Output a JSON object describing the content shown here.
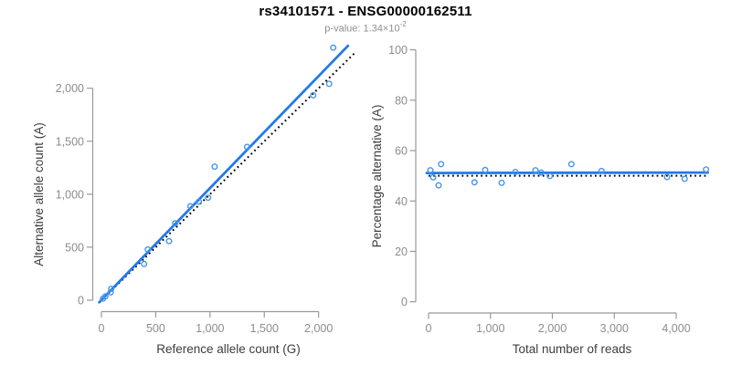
{
  "header": {
    "title": "rs34101571 - ENSG00000162511",
    "subtitle_prefix": "p-value: 1.34×10",
    "subtitle_exponent": "-2"
  },
  "colors": {
    "point": "#4697e8",
    "fit_line": "#2279e8",
    "reference_line": "#000000",
    "axis": "#999999",
    "tick_label": "#8c8c8c",
    "axis_title": "#3d3d3d",
    "title": "#000000",
    "subtitle": "#8f8f8f",
    "background": "#ffffff"
  },
  "chart_data": [
    {
      "name": "allele-counts-scatter",
      "type": "scatter",
      "xlabel": "Reference allele count (G)",
      "ylabel": "Alternative allele count (A)",
      "xlim": [
        0,
        2000
      ],
      "ylim": [
        0,
        2000
      ],
      "grid": false,
      "legend": null,
      "xtick_values": [
        0,
        500,
        1000,
        1500,
        2000
      ],
      "xtick_labels": [
        "0",
        "500",
        "1,000",
        "1,500",
        "2,000"
      ],
      "ytick_values": [
        0,
        500,
        1000,
        1500,
        2000
      ],
      "ytick_labels": [
        "0",
        "500",
        "1,000",
        "1,500",
        "2,000"
      ],
      "points": [
        [
          14,
          15
        ],
        [
          36,
          36
        ],
        [
          85,
          74
        ],
        [
          90,
          108
        ],
        [
          393,
          342
        ],
        [
          427,
          479
        ],
        [
          623,
          557
        ],
        [
          679,
          726
        ],
        [
          819,
          887
        ],
        [
          898,
          930
        ],
        [
          982,
          967
        ],
        [
          1043,
          1260
        ],
        [
          1341,
          1446
        ],
        [
          1951,
          1934
        ],
        [
          2097,
          2041
        ],
        [
          2135,
          2382
        ]
      ],
      "fit_line": [
        [
          -20,
          -20
        ],
        [
          2270,
          2400
        ]
      ],
      "reference_line": [
        [
          0,
          0
        ],
        [
          2330,
          2330
        ]
      ]
    },
    {
      "name": "percentage-vs-reads-scatter",
      "type": "scatter",
      "xlabel": "Total number of reads",
      "ylabel": "Percentage alternative (A)",
      "xlim": [
        0,
        4000
      ],
      "ylim": [
        0,
        100
      ],
      "grid": false,
      "legend": null,
      "xtick_values": [
        0,
        1000,
        2000,
        3000,
        4000
      ],
      "xtick_labels": [
        "0",
        "1,000",
        "2,000",
        "3,000",
        "4,000"
      ],
      "ytick_values": [
        0,
        20,
        40,
        60,
        80,
        100
      ],
      "ytick_labels": [
        "0",
        "20",
        "40",
        "60",
        "80",
        "100"
      ],
      "points": [
        [
          30,
          52.2
        ],
        [
          75,
          49.4
        ],
        [
          162,
          46.2
        ],
        [
          202,
          54.6
        ],
        [
          742,
          47.4
        ],
        [
          915,
          52.3
        ],
        [
          1181,
          47.2
        ],
        [
          1402,
          51.5
        ],
        [
          1727,
          52.2
        ],
        [
          1820,
          51.3
        ],
        [
          1959,
          49.9
        ],
        [
          2307,
          54.6
        ],
        [
          2794,
          51.9
        ],
        [
          3852,
          49.5
        ],
        [
          4138,
          48.8
        ],
        [
          4483,
          52.5
        ]
      ],
      "fit_line": [
        [
          -30,
          51.1
        ],
        [
          4510,
          51.3
        ]
      ],
      "reference_line": [
        [
          0,
          50
        ],
        [
          4480,
          50
        ]
      ]
    }
  ]
}
